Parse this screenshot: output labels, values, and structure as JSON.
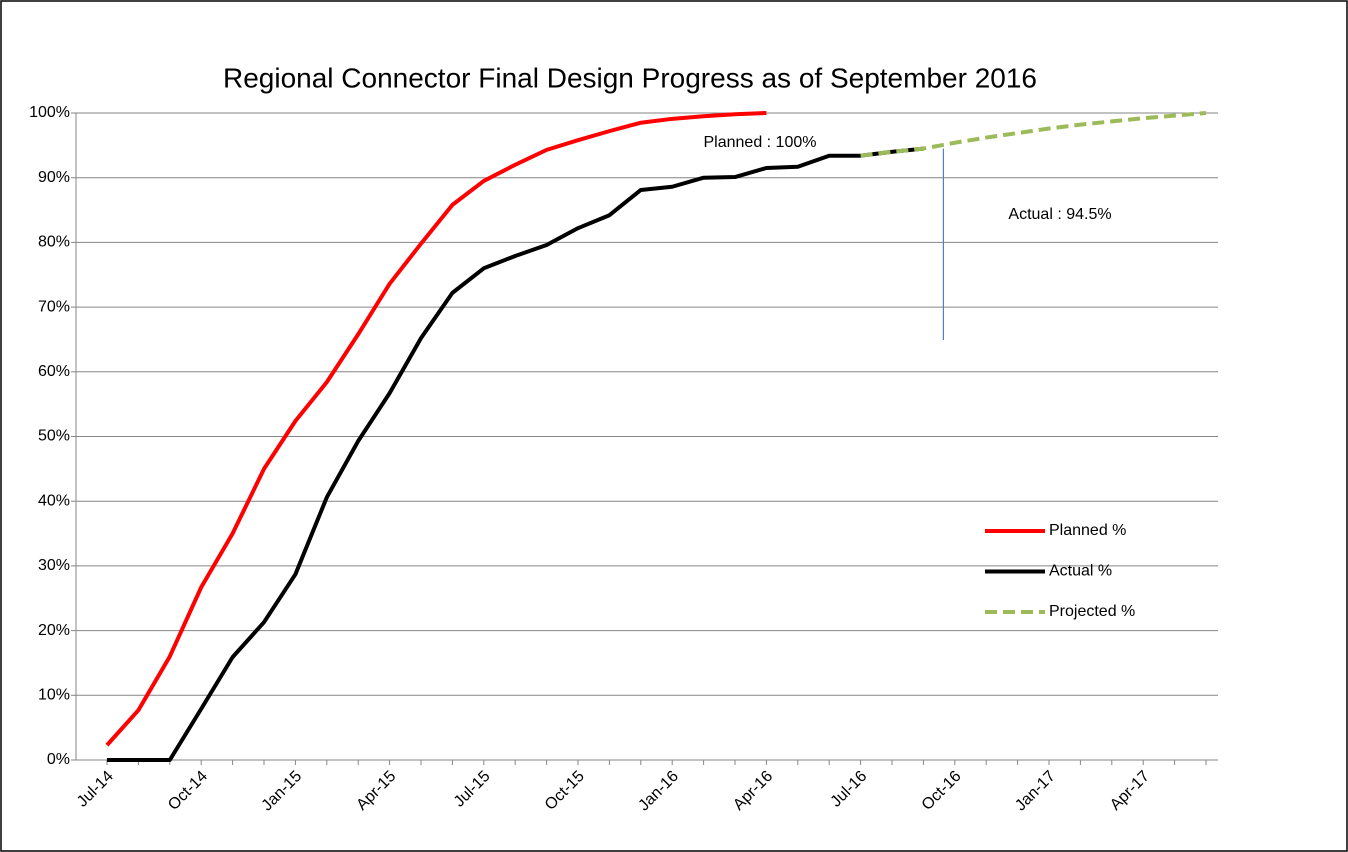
{
  "chart_data": {
    "type": "line",
    "title": "Regional Connector Final Design Progress as of September 2016",
    "categories": [
      "Jul-14",
      null,
      null,
      "Oct-14",
      null,
      null,
      "Jan-15",
      null,
      null,
      "Apr-15",
      null,
      null,
      "Jul-15",
      null,
      null,
      "Oct-15",
      null,
      null,
      "Jan-16",
      null,
      null,
      "Apr-16",
      null,
      null,
      "Jul-16",
      null,
      null,
      "Oct-16",
      null,
      null,
      "Jan-17",
      null,
      null,
      "Apr-17",
      null,
      null
    ],
    "series": [
      {
        "name": "Planned %",
        "color": "#ff0000",
        "dashed": false,
        "values": [
          2.3,
          7.7,
          16,
          26.7,
          35,
          45,
          52.4,
          58.4,
          65.8,
          73.6,
          79.8,
          85.8,
          89.5,
          92,
          94.3,
          95.8,
          97.2,
          98.5,
          99.1,
          99.5,
          99.8,
          100,
          null,
          null,
          null,
          null,
          null,
          null,
          null,
          null,
          null,
          null,
          null,
          null,
          null,
          null
        ]
      },
      {
        "name": "Actual %",
        "color": "#000000",
        "dashed": false,
        "values": [
          0,
          0,
          0,
          7.9,
          15.9,
          21.3,
          28.7,
          40.6,
          49.3,
          56.7,
          65.2,
          72.2,
          76,
          77.9,
          79.6,
          82.2,
          84.2,
          88.1,
          88.6,
          90,
          90.1,
          91.5,
          91.7,
          93.4,
          93.4,
          94,
          94.5,
          null,
          null,
          null,
          null,
          null,
          null,
          null,
          null,
          null
        ]
      },
      {
        "name": "Projected %",
        "color": "#9bbb59",
        "dashed": true,
        "values": [
          null,
          null,
          null,
          null,
          null,
          null,
          null,
          null,
          null,
          null,
          null,
          null,
          null,
          null,
          null,
          null,
          null,
          null,
          null,
          null,
          null,
          null,
          null,
          null,
          93.4,
          94,
          94.5,
          95.4,
          96.2,
          96.9,
          97.6,
          98.2,
          98.7,
          99.2,
          99.6,
          100
        ]
      }
    ],
    "ylim": [
      0,
      100
    ],
    "yticks": [
      {
        "value": 0,
        "label": "0%"
      },
      {
        "value": 10,
        "label": "10%"
      },
      {
        "value": 20,
        "label": "20%"
      },
      {
        "value": 30,
        "label": "30%"
      },
      {
        "value": 40,
        "label": "40%"
      },
      {
        "value": 50,
        "label": "50%"
      },
      {
        "value": 60,
        "label": "60%"
      },
      {
        "value": 70,
        "label": "70%"
      },
      {
        "value": 80,
        "label": "80%"
      },
      {
        "value": 90,
        "label": "90%"
      },
      {
        "value": 100,
        "label": "100%"
      }
    ],
    "grid": true,
    "legend": "right",
    "annotations": [
      "Planned : 100%",
      "Actual : 94.5%"
    ]
  }
}
